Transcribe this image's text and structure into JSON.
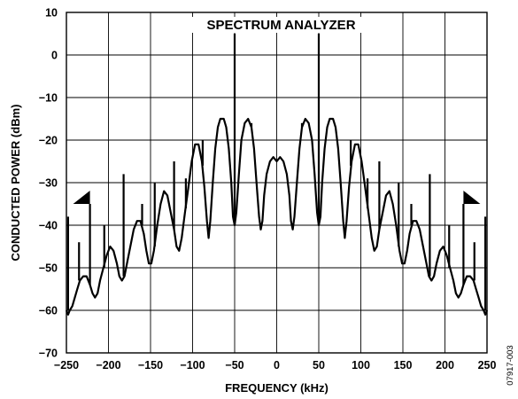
{
  "chart_data": {
    "type": "line",
    "title": "SPECTRUM ANALYZER",
    "xlabel": "FREQUENCY (kHz)",
    "ylabel": "CONDUCTED POWER (dBm)",
    "xlim": [
      -250,
      250
    ],
    "ylim": [
      -70,
      10
    ],
    "x_ticks": [
      -250,
      -200,
      -150,
      -100,
      -50,
      0,
      50,
      100,
      150,
      200,
      250
    ],
    "x_tick_labels": [
      "−250",
      "−200",
      "−150",
      "−100",
      "−50",
      "0",
      "50",
      "100",
      "150",
      "200",
      "250"
    ],
    "y_ticks": [
      10,
      0,
      -10,
      -20,
      -30,
      -40,
      -50,
      -60,
      -70
    ],
    "y_tick_labels": [
      "10",
      "0",
      "−10",
      "−20",
      "−30",
      "−40",
      "−50",
      "−60",
      "−70"
    ],
    "grid": true,
    "legend": "none",
    "series": [
      {
        "color": "#000000",
        "points": [
          [
            -250,
            -60
          ],
          [
            -248,
            -61
          ],
          [
            -246,
            -60
          ],
          [
            -243,
            -59
          ],
          [
            -240,
            -57
          ],
          [
            -237,
            -55
          ],
          [
            -234,
            -53
          ],
          [
            -230,
            -52
          ],
          [
            -226,
            -52
          ],
          [
            -222,
            -54
          ],
          [
            -219,
            -56
          ],
          [
            -216,
            -57
          ],
          [
            -213,
            -56
          ],
          [
            -210,
            -53
          ],
          [
            -206,
            -50
          ],
          [
            -202,
            -47
          ],
          [
            -198,
            -45
          ],
          [
            -194,
            -46
          ],
          [
            -190,
            -49
          ],
          [
            -187,
            -52
          ],
          [
            -184,
            -53
          ],
          [
            -181,
            -52
          ],
          [
            -178,
            -49
          ],
          [
            -174,
            -45
          ],
          [
            -170,
            -41
          ],
          [
            -166,
            -39
          ],
          [
            -162,
            -39
          ],
          [
            -158,
            -42
          ],
          [
            -155,
            -46
          ],
          [
            -152,
            -49
          ],
          [
            -149,
            -49
          ],
          [
            -146,
            -46
          ],
          [
            -142,
            -40
          ],
          [
            -138,
            -35
          ],
          [
            -134,
            -32
          ],
          [
            -130,
            -33
          ],
          [
            -126,
            -37
          ],
          [
            -122,
            -41
          ],
          [
            -119,
            -45
          ],
          [
            -116,
            -46
          ],
          [
            -113,
            -43
          ],
          [
            -109,
            -37
          ],
          [
            -105,
            -31
          ],
          [
            -101,
            -25
          ],
          [
            -97,
            -21
          ],
          [
            -93,
            -21
          ],
          [
            -89,
            -25
          ],
          [
            -86,
            -31
          ],
          [
            -83,
            -39
          ],
          [
            -81,
            -43
          ],
          [
            -79,
            -39
          ],
          [
            -76,
            -30
          ],
          [
            -73,
            -22
          ],
          [
            -70,
            -17
          ],
          [
            -67,
            -15
          ],
          [
            -63,
            -15
          ],
          [
            -60,
            -17
          ],
          [
            -57,
            -22
          ],
          [
            -54,
            -30
          ],
          [
            -52,
            -38
          ],
          [
            -50,
            -40
          ],
          [
            -48,
            -37
          ],
          [
            -45,
            -28
          ],
          [
            -42,
            -20
          ],
          [
            -38,
            -16
          ],
          [
            -34,
            -15
          ],
          [
            -30,
            -17
          ],
          [
            -27,
            -22
          ],
          [
            -24,
            -30
          ],
          [
            -21,
            -38
          ],
          [
            -19,
            -41
          ],
          [
            -17,
            -39
          ],
          [
            -15,
            -33
          ],
          [
            -12,
            -28
          ],
          [
            -8,
            -25
          ],
          [
            -4,
            -24
          ],
          [
            0,
            -25
          ],
          [
            4,
            -24
          ],
          [
            8,
            -25
          ],
          [
            12,
            -28
          ],
          [
            15,
            -33
          ],
          [
            17,
            -39
          ],
          [
            19,
            -41
          ],
          [
            21,
            -38
          ],
          [
            24,
            -30
          ],
          [
            27,
            -22
          ],
          [
            30,
            -17
          ],
          [
            34,
            -15
          ],
          [
            38,
            -16
          ],
          [
            42,
            -20
          ],
          [
            45,
            -28
          ],
          [
            48,
            -37
          ],
          [
            50,
            -40
          ],
          [
            52,
            -38
          ],
          [
            54,
            -30
          ],
          [
            57,
            -22
          ],
          [
            60,
            -17
          ],
          [
            63,
            -15
          ],
          [
            67,
            -15
          ],
          [
            70,
            -17
          ],
          [
            73,
            -22
          ],
          [
            76,
            -30
          ],
          [
            79,
            -39
          ],
          [
            81,
            -43
          ],
          [
            83,
            -39
          ],
          [
            86,
            -31
          ],
          [
            89,
            -25
          ],
          [
            93,
            -21
          ],
          [
            97,
            -21
          ],
          [
            101,
            -25
          ],
          [
            105,
            -31
          ],
          [
            109,
            -37
          ],
          [
            113,
            -43
          ],
          [
            116,
            -46
          ],
          [
            119,
            -45
          ],
          [
            122,
            -41
          ],
          [
            126,
            -37
          ],
          [
            130,
            -33
          ],
          [
            134,
            -32
          ],
          [
            138,
            -35
          ],
          [
            142,
            -40
          ],
          [
            146,
            -46
          ],
          [
            149,
            -49
          ],
          [
            152,
            -49
          ],
          [
            155,
            -46
          ],
          [
            158,
            -42
          ],
          [
            162,
            -39
          ],
          [
            166,
            -39
          ],
          [
            170,
            -41
          ],
          [
            174,
            -45
          ],
          [
            178,
            -49
          ],
          [
            181,
            -52
          ],
          [
            184,
            -53
          ],
          [
            187,
            -52
          ],
          [
            190,
            -49
          ],
          [
            194,
            -46
          ],
          [
            198,
            -45
          ],
          [
            202,
            -47
          ],
          [
            206,
            -50
          ],
          [
            210,
            -53
          ],
          [
            213,
            -56
          ],
          [
            216,
            -57
          ],
          [
            219,
            -56
          ],
          [
            222,
            -54
          ],
          [
            226,
            -52
          ],
          [
            230,
            -52
          ],
          [
            234,
            -53
          ],
          [
            237,
            -55
          ],
          [
            240,
            -57
          ],
          [
            243,
            -59
          ],
          [
            246,
            -60
          ],
          [
            248,
            -61
          ],
          [
            250,
            -60
          ]
        ],
        "spurs": [
          {
            "x": -248,
            "base": -60,
            "peak": -38
          },
          {
            "x": -235,
            "base": -53,
            "peak": -44
          },
          {
            "x": -222,
            "base": -54,
            "peak": -35
          },
          {
            "x": -205,
            "base": -50,
            "peak": -40
          },
          {
            "x": -182,
            "base": -52,
            "peak": -28
          },
          {
            "x": -160,
            "base": -40,
            "peak": -35
          },
          {
            "x": -145,
            "base": -45,
            "peak": -30
          },
          {
            "x": -122,
            "base": -41,
            "peak": -25
          },
          {
            "x": -108,
            "base": -36,
            "peak": -29
          },
          {
            "x": -88,
            "base": -26,
            "peak": -20
          },
          {
            "x": -68,
            "base": -15,
            "peak": -15
          },
          {
            "x": -50,
            "base": -40,
            "peak": 5
          },
          {
            "x": -30,
            "base": -17,
            "peak": -16
          },
          {
            "x": -10,
            "base": -25,
            "peak": -25
          },
          {
            "x": 10,
            "base": -25,
            "peak": -25
          },
          {
            "x": 30,
            "base": -17,
            "peak": -16
          },
          {
            "x": 50,
            "base": -40,
            "peak": 5
          },
          {
            "x": 68,
            "base": -15,
            "peak": -15
          },
          {
            "x": 88,
            "base": -26,
            "peak": -20
          },
          {
            "x": 108,
            "base": -36,
            "peak": -29
          },
          {
            "x": 122,
            "base": -41,
            "peak": -25
          },
          {
            "x": 145,
            "base": -45,
            "peak": -30
          },
          {
            "x": 160,
            "base": -40,
            "peak": -35
          },
          {
            "x": 182,
            "base": -52,
            "peak": -28
          },
          {
            "x": 205,
            "base": -50,
            "peak": -40
          },
          {
            "x": 222,
            "base": -54,
            "peak": -35
          },
          {
            "x": 235,
            "base": -53,
            "peak": -44
          },
          {
            "x": 248,
            "base": -60,
            "peak": -38
          }
        ]
      }
    ],
    "annotations": [
      {
        "kind": "flag-left",
        "x": -222,
        "y": -35
      },
      {
        "kind": "flag-right",
        "x": 222,
        "y": -35
      }
    ]
  },
  "figure_id": "07917-003"
}
